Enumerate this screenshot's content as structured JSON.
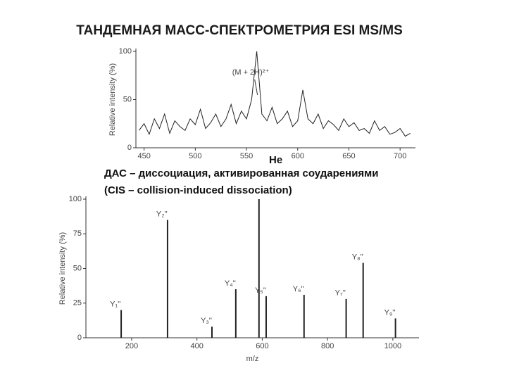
{
  "slide": {
    "title": "ТАНДЕМНАЯ МАСС-СПЕКТРОМЕТРИЯ ESI MS/MS",
    "gas": "Не",
    "lines": [
      "ДАС – диссоциация, активированная соударениями",
      "(CIS – collision-induced dissociation)"
    ]
  },
  "chart_data": [
    {
      "type": "line",
      "ylabel": "Relative intensity (%)",
      "annotation": "(M + 2H)²⁺",
      "annotation_x": 558,
      "color": "#222222",
      "x": [
        445,
        450,
        455,
        460,
        465,
        470,
        475,
        480,
        485,
        490,
        495,
        500,
        505,
        510,
        515,
        520,
        525,
        530,
        535,
        540,
        545,
        550,
        555,
        560,
        565,
        570,
        575,
        580,
        585,
        590,
        595,
        600,
        605,
        610,
        615,
        620,
        625,
        630,
        635,
        640,
        645,
        650,
        655,
        660,
        665,
        670,
        675,
        680,
        685,
        690,
        695,
        700,
        705,
        710
      ],
      "values": [
        18,
        25,
        14,
        30,
        20,
        35,
        15,
        28,
        22,
        18,
        30,
        24,
        40,
        20,
        26,
        35,
        22,
        30,
        45,
        25,
        38,
        30,
        50,
        100,
        35,
        28,
        42,
        25,
        30,
        38,
        22,
        28,
        60,
        30,
        25,
        35,
        20,
        28,
        24,
        18,
        30,
        22,
        26,
        18,
        20,
        15,
        28,
        18,
        22,
        14,
        16,
        20,
        12,
        15
      ],
      "xlim": [
        442,
        715
      ],
      "ylim": [
        0,
        100
      ],
      "xticks": [
        450,
        500,
        550,
        600,
        650,
        700
      ],
      "yticks": [
        0,
        50,
        100
      ]
    },
    {
      "type": "stem",
      "ylabel": "Relative intensity (%)",
      "xlabel": "m/z",
      "color": "#222222",
      "x": [
        168,
        310,
        446,
        519,
        590,
        612,
        728,
        857,
        909,
        1008
      ],
      "values": [
        20,
        85,
        8,
        35,
        100,
        30,
        31,
        28,
        54,
        14
      ],
      "labels": [
        "Y₁''",
        "Y₂''",
        "Y₃''",
        "Y₄''",
        null,
        "Y₅''",
        "Y₆''",
        "Y₇''",
        "Y₈''",
        "Y₉''"
      ],
      "xlim": [
        60,
        1080
      ],
      "ylim": [
        0,
        100
      ],
      "xticks": [
        200,
        400,
        600,
        800,
        1000
      ],
      "yticks": [
        0,
        25,
        50,
        75,
        100
      ]
    }
  ]
}
